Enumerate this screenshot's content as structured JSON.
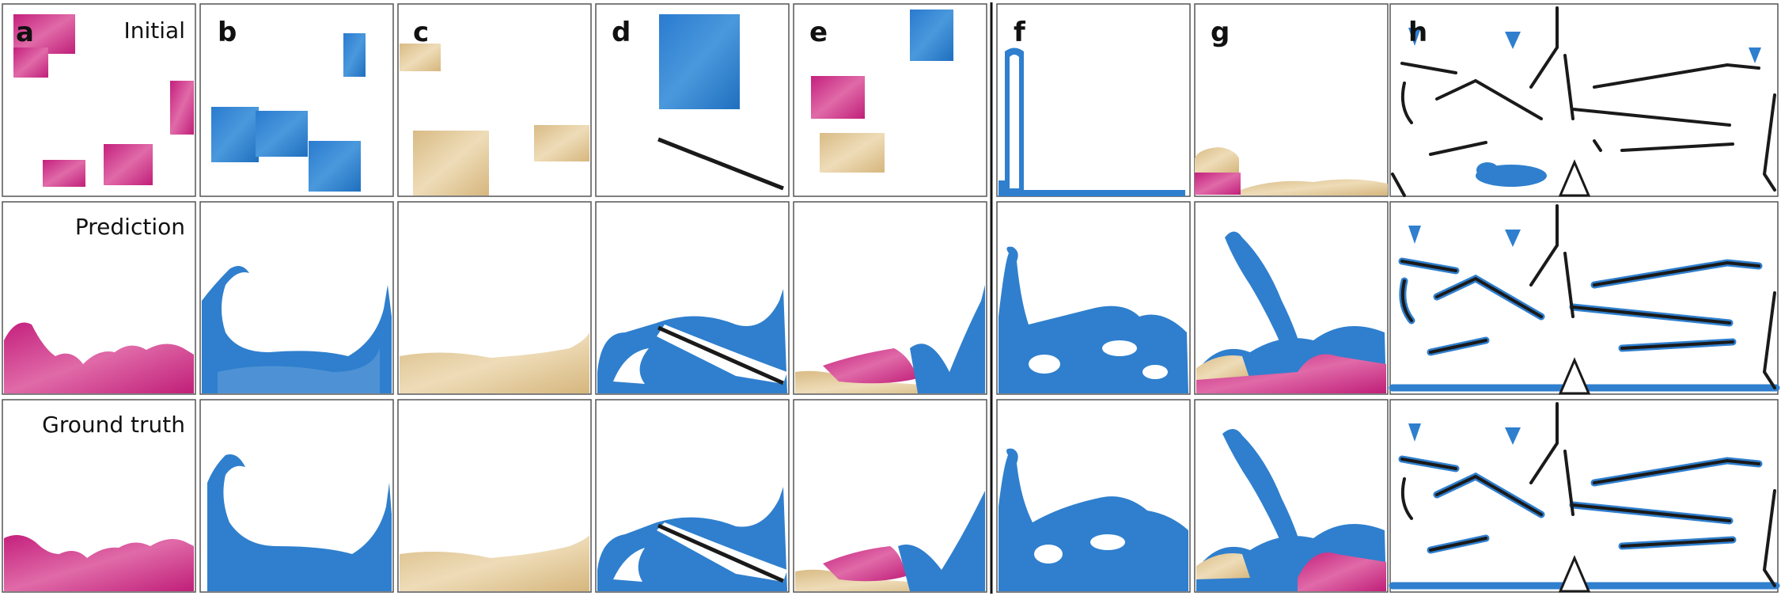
{
  "figure": {
    "panel_letters": [
      "a",
      "b",
      "c",
      "d",
      "e",
      "f",
      "g",
      "h"
    ],
    "row_labels": [
      "Initial",
      "Prediction",
      "Ground truth"
    ]
  },
  "colors": {
    "water": "#2f7fce",
    "goop": "#cf2a86",
    "sand": "#ddc28f",
    "obstacle": "#1a1a1a",
    "frame": "#555555"
  }
}
